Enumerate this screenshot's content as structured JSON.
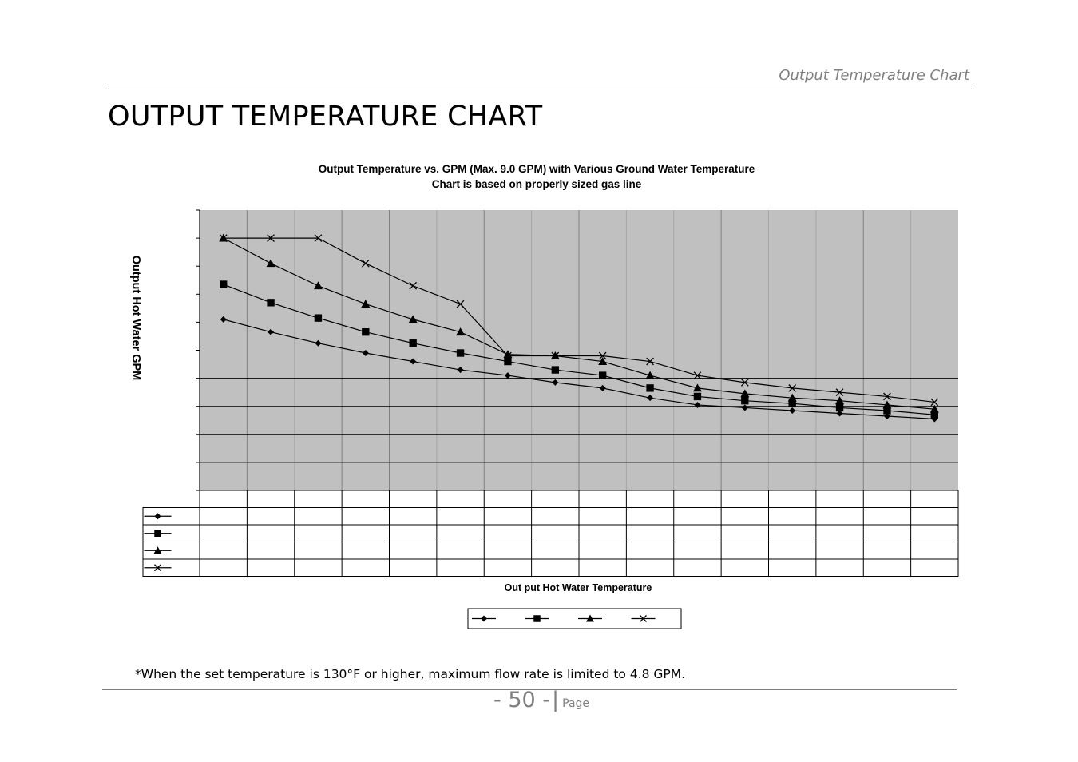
{
  "header": {
    "running_title": "Output Temperature Chart",
    "page_title": "OUTPUT TEMPERATURE CHART"
  },
  "footer": {
    "note": "*When the set temperature is 130°F or higher, maximum flow rate is limited to 4.8 GPM.",
    "page_number": "- 50 -",
    "page_separator": "|",
    "page_word": "Page"
  },
  "chart_data": {
    "type": "line",
    "title": "Output Temperature vs. GPM (Max. 9.0 GPM) with Various Ground Water Temperature",
    "subtitle": "Chart is based on properly sized gas line",
    "xlabel": "Out put Hot Water Temperature",
    "ylabel": "Output Hot Water GPM",
    "ylim": [
      0,
      10
    ],
    "y_gridlines": [
      1,
      2,
      3,
      4
    ],
    "x_count": 16,
    "x_major_after": [
      1,
      3,
      4,
      6,
      8,
      11,
      14
    ],
    "plot_background": "#c0c0c0",
    "legend_position": "bottom",
    "series": [
      {
        "marker": "diamond",
        "values": [
          6.1,
          5.65,
          5.25,
          4.9,
          4.6,
          4.3,
          4.1,
          3.85,
          3.65,
          3.3,
          3.05,
          2.95,
          2.85,
          2.75,
          2.65,
          2.55
        ]
      },
      {
        "marker": "square",
        "values": [
          7.35,
          6.7,
          6.15,
          5.65,
          5.25,
          4.9,
          4.6,
          4.3,
          4.1,
          3.65,
          3.35,
          3.2,
          3.1,
          2.95,
          2.85,
          2.7
        ]
      },
      {
        "marker": "triangle",
        "values": [
          9.0,
          8.1,
          7.3,
          6.65,
          6.1,
          5.65,
          4.85,
          4.8,
          4.6,
          4.1,
          3.65,
          3.45,
          3.3,
          3.2,
          3.05,
          2.9
        ]
      },
      {
        "marker": "x",
        "values": [
          9.0,
          9.0,
          9.0,
          8.1,
          7.3,
          6.65,
          4.8,
          4.8,
          4.8,
          4.6,
          4.1,
          3.85,
          3.65,
          3.5,
          3.35,
          3.15
        ]
      }
    ]
  }
}
